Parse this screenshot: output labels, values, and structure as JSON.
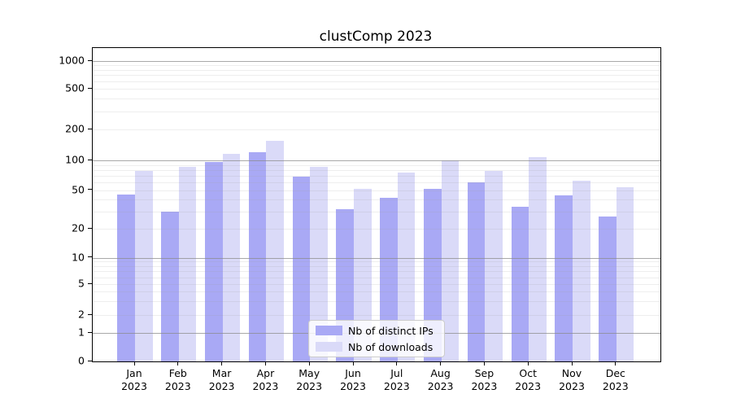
{
  "title": "clustComp 2023",
  "chart_data": {
    "type": "bar",
    "title": "clustComp 2023",
    "xlabel": "",
    "ylabel": "",
    "yscale": "symlog",
    "grid": "major-and-minor, drawn above bars",
    "legend_position": "lower center",
    "ytick_labels": [
      "0",
      "1",
      "2",
      "5",
      "10",
      "20",
      "50",
      "100",
      "200",
      "500",
      "1000"
    ],
    "ytick_values": [
      0,
      1,
      2,
      5,
      10,
      20,
      50,
      100,
      200,
      500,
      1000
    ],
    "ylim": [
      0,
      1400
    ],
    "categories": [
      "Jan 2023",
      "Feb 2023",
      "Mar 2023",
      "Apr 2023",
      "May 2023",
      "Jun 2023",
      "Jul 2023",
      "Aug 2023",
      "Sep 2023",
      "Oct 2023",
      "Nov 2023",
      "Dec 2023"
    ],
    "series": [
      {
        "name": "Nb of distinct IPs",
        "color": "#a9a9f5",
        "values": [
          45,
          30,
          97,
          120,
          69,
          32,
          42,
          52,
          60,
          34,
          44,
          27
        ]
      },
      {
        "name": "Nb of downloads",
        "color": "#dadaf8",
        "values": [
          78,
          86,
          116,
          155,
          86,
          52,
          76,
          100,
          78,
          107,
          62,
          54
        ]
      }
    ]
  }
}
